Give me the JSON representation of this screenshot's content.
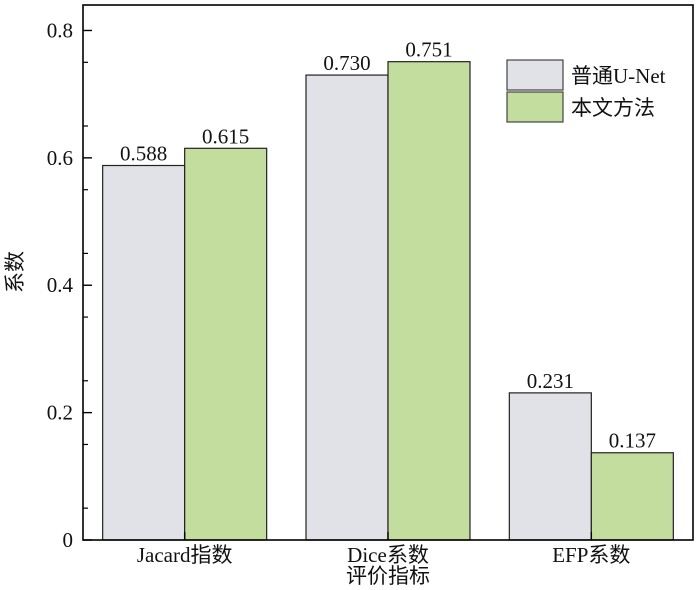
{
  "chart_data": {
    "type": "bar",
    "title": "",
    "xlabel": "评价指标",
    "ylabel": "系数",
    "ylim": [
      0,
      0.84
    ],
    "yticks": [
      0,
      0.2,
      0.4,
      0.6,
      0.8
    ],
    "ytick_labels": [
      "0",
      "0.2",
      "0.4",
      "0.6",
      "0.8"
    ],
    "grid": false,
    "legend_position": "top-right",
    "categories": [
      "Jacard指数",
      "Dice系数",
      "EFP系数"
    ],
    "series": [
      {
        "name": "普通U-Net",
        "values": [
          0.588,
          0.73,
          0.231
        ],
        "labels": [
          "0.588",
          "0.730",
          "0.231"
        ],
        "color": "#e0e2e7"
      },
      {
        "name": "本文方法",
        "values": [
          0.615,
          0.751,
          0.137
        ],
        "labels": [
          "0.615",
          "0.751",
          "0.137"
        ],
        "color": "#c3dd9e"
      }
    ]
  }
}
